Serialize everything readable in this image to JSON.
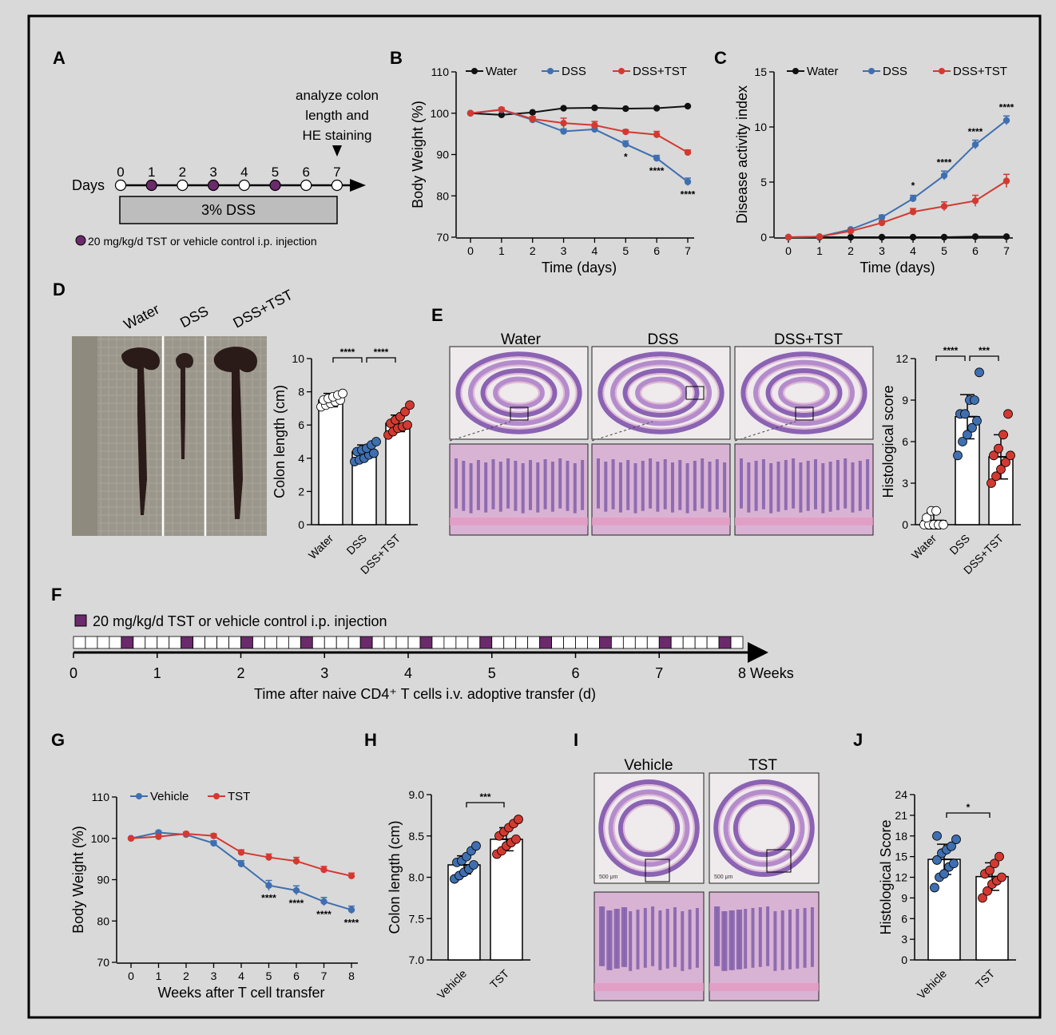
{
  "panel_labels": [
    "A",
    "B",
    "C",
    "D",
    "E",
    "F",
    "G",
    "H",
    "I",
    "J"
  ],
  "colors": {
    "water": "#111111",
    "dss": "#3f6fb0",
    "tst": "#d23a31",
    "purple": "#6b2a6b",
    "hist_pink": "#d9a7c9",
    "hist_purple": "#7a5aa8"
  },
  "panelA": {
    "annotation": [
      "analyze colon",
      "length and",
      "HE staining"
    ],
    "days_label": "Days",
    "day_ticks": [
      "0",
      "1",
      "2",
      "3",
      "4",
      "5",
      "6",
      "7"
    ],
    "injection_days": [
      1,
      3,
      5
    ],
    "dss_box": "3% DSS",
    "legend": "20 mg/kg/d TST or vehicle control i.p. injection"
  },
  "panelD": {
    "photo_labels": [
      "Water",
      "DSS",
      "DSS+TST"
    ]
  },
  "panelE": {
    "photo_labels": [
      "Water",
      "DSS",
      "DSS+TST"
    ]
  },
  "panelF": {
    "legend": "20 mg/kg/d TST or vehicle control i.p. injection",
    "axis_ticks": [
      "0",
      "1",
      "2",
      "3",
      "4",
      "5",
      "6",
      "7"
    ],
    "end_label": "8 Weeks",
    "xlabel": "Time after naive CD4⁺ T cells i.v. adoptive transfer (d)",
    "injection_cells": [
      5,
      10,
      15,
      20,
      25,
      30,
      35,
      40,
      45,
      50,
      55,
      60,
      65
    ]
  },
  "panelI": {
    "photo_labels": [
      "Vehicle",
      "TST"
    ],
    "scale_bar": "500 μm"
  },
  "chart_data": [
    {
      "id": "B",
      "type": "line",
      "xlabel": "Time (days)",
      "ylabel": "Body Weight (%)",
      "x": [
        0,
        1,
        2,
        3,
        4,
        5,
        6,
        7
      ],
      "ylim": [
        70,
        110
      ],
      "yticks": [
        70,
        80,
        90,
        100,
        110
      ],
      "series": [
        {
          "name": "Water",
          "color": "#111111",
          "values": [
            100,
            99.6,
            100.2,
            101.2,
            101.3,
            101.1,
            101.2,
            101.7
          ],
          "err": [
            0,
            0,
            0,
            0,
            0,
            0,
            0,
            0
          ]
        },
        {
          "name": "DSS",
          "color": "#3f6fb0",
          "values": [
            100,
            100.8,
            98.4,
            95.6,
            96.1,
            92.5,
            89.1,
            83.4
          ],
          "err": [
            0,
            0.4,
            0.5,
            0.6,
            0.6,
            0.8,
            0.7,
            0.9
          ]
        },
        {
          "name": "DSS+TST",
          "color": "#d23a31",
          "values": [
            100,
            100.9,
            98.6,
            97.6,
            97.1,
            95.5,
            94.8,
            90.5
          ],
          "err": [
            0,
            0.4,
            0.6,
            1.2,
            0.9,
            0.5,
            0.8,
            0.6
          ]
        }
      ],
      "sig": [
        {
          "x": 5,
          "text": "*"
        },
        {
          "x": 6,
          "text": "****"
        },
        {
          "x": 7,
          "text": "****"
        }
      ]
    },
    {
      "id": "C",
      "type": "line",
      "xlabel": "Time (days)",
      "ylabel": "Disease activity index",
      "x": [
        0,
        1,
        2,
        3,
        4,
        5,
        6,
        7
      ],
      "ylim": [
        0,
        15
      ],
      "yticks": [
        0,
        5,
        10,
        15
      ],
      "series": [
        {
          "name": "Water",
          "color": "#111111",
          "values": [
            0,
            0,
            0,
            0,
            0,
            0,
            0.05,
            0.05
          ],
          "err": [
            0,
            0,
            0,
            0,
            0,
            0,
            0,
            0
          ]
        },
        {
          "name": "DSS",
          "color": "#3f6fb0",
          "values": [
            0,
            0.05,
            0.7,
            1.8,
            3.5,
            5.6,
            8.4,
            10.6
          ],
          "err": [
            0,
            0,
            0.1,
            0.2,
            0.3,
            0.4,
            0.4,
            0.4
          ]
        },
        {
          "name": "DSS+TST",
          "color": "#d23a31",
          "values": [
            0,
            0.05,
            0.55,
            1.3,
            2.3,
            2.8,
            3.3,
            5.1
          ],
          "err": [
            0,
            0,
            0.1,
            0.2,
            0.3,
            0.4,
            0.5,
            0.6
          ]
        }
      ],
      "sig": [
        {
          "x": 4,
          "text": "*"
        },
        {
          "x": 5,
          "text": "****"
        },
        {
          "x": 6,
          "text": "****"
        },
        {
          "x": 7,
          "text": "****"
        }
      ]
    },
    {
      "id": "D",
      "type": "bar",
      "ylabel": "Colon  length (cm)",
      "categories": [
        "Water",
        "DSS",
        "DSS+TST"
      ],
      "ylim": [
        0,
        10
      ],
      "yticks": [
        0,
        2,
        4,
        6,
        8,
        10
      ],
      "values": [
        7.5,
        4.4,
        6.1
      ],
      "err": [
        0.4,
        0.4,
        0.5
      ],
      "colors": [
        "#ffffff",
        "#3f6fb0",
        "#d23a31"
      ],
      "points": [
        [
          7.1,
          7.2,
          7.3,
          7.4,
          7.5,
          7.5,
          7.6,
          7.7,
          7.8,
          7.9
        ],
        [
          3.8,
          3.9,
          4.0,
          4.2,
          4.3,
          4.4,
          4.5,
          4.6,
          4.8,
          5.0
        ],
        [
          5.4,
          5.6,
          5.8,
          5.9,
          6.0,
          6.1,
          6.3,
          6.5,
          6.8,
          7.2
        ]
      ],
      "brackets": [
        {
          "from": 0,
          "to": 1,
          "text": "****"
        },
        {
          "from": 1,
          "to": 2,
          "text": "****"
        }
      ]
    },
    {
      "id": "E",
      "type": "bar",
      "ylabel": "Histological score",
      "categories": [
        "Water",
        "DSS",
        "DSS+TST"
      ],
      "ylim": [
        0,
        12
      ],
      "yticks": [
        0,
        3,
        6,
        9,
        12
      ],
      "values": [
        0.3,
        7.8,
        4.9
      ],
      "err": [
        0.6,
        1.6,
        1.6
      ],
      "colors": [
        "#ffffff",
        "#3f6fb0",
        "#d23a31"
      ],
      "points": [
        [
          0,
          0,
          0,
          0,
          0,
          0.5,
          1,
          1
        ],
        [
          5,
          6,
          6.5,
          7,
          7.5,
          8,
          8,
          9,
          9,
          11
        ],
        [
          3,
          3.5,
          4,
          4.5,
          5,
          5,
          5.5,
          6.5,
          8
        ]
      ],
      "brackets": [
        {
          "from": 0,
          "to": 1,
          "text": "****"
        },
        {
          "from": 1,
          "to": 2,
          "text": "***"
        }
      ]
    },
    {
      "id": "G",
      "type": "line",
      "xlabel": "Weeks after T cell transfer",
      "ylabel": "Body Weight (%)",
      "x": [
        0,
        1,
        2,
        3,
        4,
        5,
        6,
        7,
        8
      ],
      "ylim": [
        70,
        110
      ],
      "yticks": [
        70,
        80,
        90,
        100,
        110
      ],
      "series": [
        {
          "name": "Vehicle",
          "color": "#3f6fb0",
          "values": [
            100,
            101.4,
            100.9,
            98.8,
            93.8,
            88.6,
            87.4,
            84.7,
            82.7
          ],
          "err": [
            0,
            0.4,
            0.5,
            0.6,
            0.8,
            1.2,
            1.1,
            1.0,
            0.9
          ]
        },
        {
          "name": "TST",
          "color": "#d23a31",
          "values": [
            100,
            100.4,
            101.1,
            100.6,
            96.6,
            95.4,
            94.5,
            92.4,
            90.9
          ],
          "err": [
            0,
            0.4,
            0.4,
            0.5,
            0.6,
            0.8,
            0.9,
            0.8,
            0.7
          ]
        }
      ],
      "sig": [
        {
          "x": 5,
          "text": "****"
        },
        {
          "x": 6,
          "text": "****"
        },
        {
          "x": 7,
          "text": "****"
        },
        {
          "x": 8,
          "text": "****"
        }
      ]
    },
    {
      "id": "H",
      "type": "bar",
      "ylabel": "Colon  length (cm)",
      "categories": [
        "Vehicle",
        "TST"
      ],
      "ylim": [
        7.0,
        9.0
      ],
      "yticks": [
        "7.0",
        "7.5",
        "8.0",
        "8.5",
        "9.0"
      ],
      "values": [
        8.15,
        8.46
      ],
      "err": [
        0.11,
        0.14
      ],
      "colors": [
        "#3f6fb0",
        "#d23a31"
      ],
      "points": [
        [
          7.98,
          8.02,
          8.06,
          8.1,
          8.15,
          8.18,
          8.2,
          8.25,
          8.32,
          8.38
        ],
        [
          8.28,
          8.32,
          8.38,
          8.42,
          8.46,
          8.5,
          8.55,
          8.6,
          8.65,
          8.7
        ]
      ],
      "brackets": [
        {
          "from": 0,
          "to": 1,
          "text": "***"
        }
      ]
    },
    {
      "id": "J",
      "type": "bar",
      "ylabel": "Histological Score",
      "categories": [
        "Vehicle",
        "TST"
      ],
      "ylim": [
        0,
        24
      ],
      "yticks": [
        0,
        3,
        6,
        9,
        12,
        15,
        18,
        21,
        24
      ],
      "values": [
        14.6,
        12.1
      ],
      "err": [
        2.2,
        2.0
      ],
      "colors": [
        "#3f6fb0",
        "#d23a31"
      ],
      "points": [
        [
          10.5,
          12,
          12.5,
          13.5,
          14,
          14.5,
          15.5,
          16,
          16.5,
          17.5,
          18
        ],
        [
          9,
          10,
          11,
          11.5,
          12,
          12.5,
          13,
          14,
          15
        ]
      ],
      "brackets": [
        {
          "from": 0,
          "to": 1,
          "text": "*"
        }
      ]
    }
  ]
}
